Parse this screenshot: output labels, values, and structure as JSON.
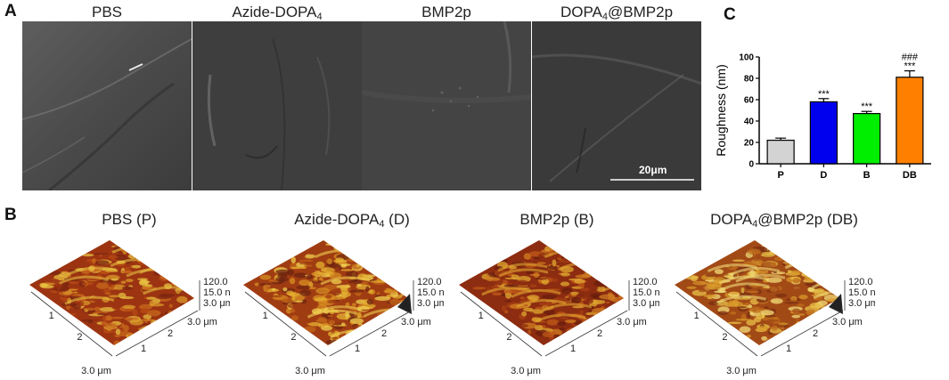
{
  "panels": {
    "a": "A",
    "b": "B",
    "c": "C"
  },
  "sem": {
    "titles": [
      {
        "main": "PBS",
        "sub": ""
      },
      {
        "main": "Azide-DOPA",
        "sub": "4"
      },
      {
        "main": "BMP2p",
        "sub": ""
      },
      {
        "main": "DOPA",
        "sub": "4",
        "rest": "@BMP2p"
      }
    ],
    "scalebar": "20μm"
  },
  "afm": {
    "titles": [
      {
        "pre": "PBS (P)",
        "sub": "",
        "post": ""
      },
      {
        "pre": "Azide-DOPA",
        "sub": "4",
        "post": " (D)"
      },
      {
        "pre": "BMP2p (B)",
        "sub": "",
        "post": ""
      },
      {
        "pre": "DOPA",
        "sub": "4",
        "post": "@BMP2p (DB)"
      }
    ],
    "z_labels": [
      "120.0 nm",
      "15.0 nm",
      "3.0 μm"
    ],
    "x_label": "3.0 μm",
    "y_ticks": [
      "1",
      "2"
    ],
    "x_ticks": [
      "1",
      "2"
    ],
    "corner_label": "3.0 μm"
  },
  "chart_data": {
    "type": "bar",
    "categories": [
      "P",
      "D",
      "B",
      "DB"
    ],
    "values": [
      22,
      58,
      47,
      81
    ],
    "errors": [
      2,
      3,
      2,
      6
    ],
    "colors": [
      "#d3d3d3",
      "#0000ee",
      "#00ee00",
      "#ff8000"
    ],
    "significance": [
      "",
      "***",
      "***",
      "***"
    ],
    "significance2": [
      "",
      "",
      "",
      "###"
    ],
    "xlabel": "",
    "ylabel": "Roughness (nm)",
    "ylim": [
      0,
      100
    ],
    "yticks": [
      0,
      20,
      40,
      60,
      80,
      100
    ]
  }
}
